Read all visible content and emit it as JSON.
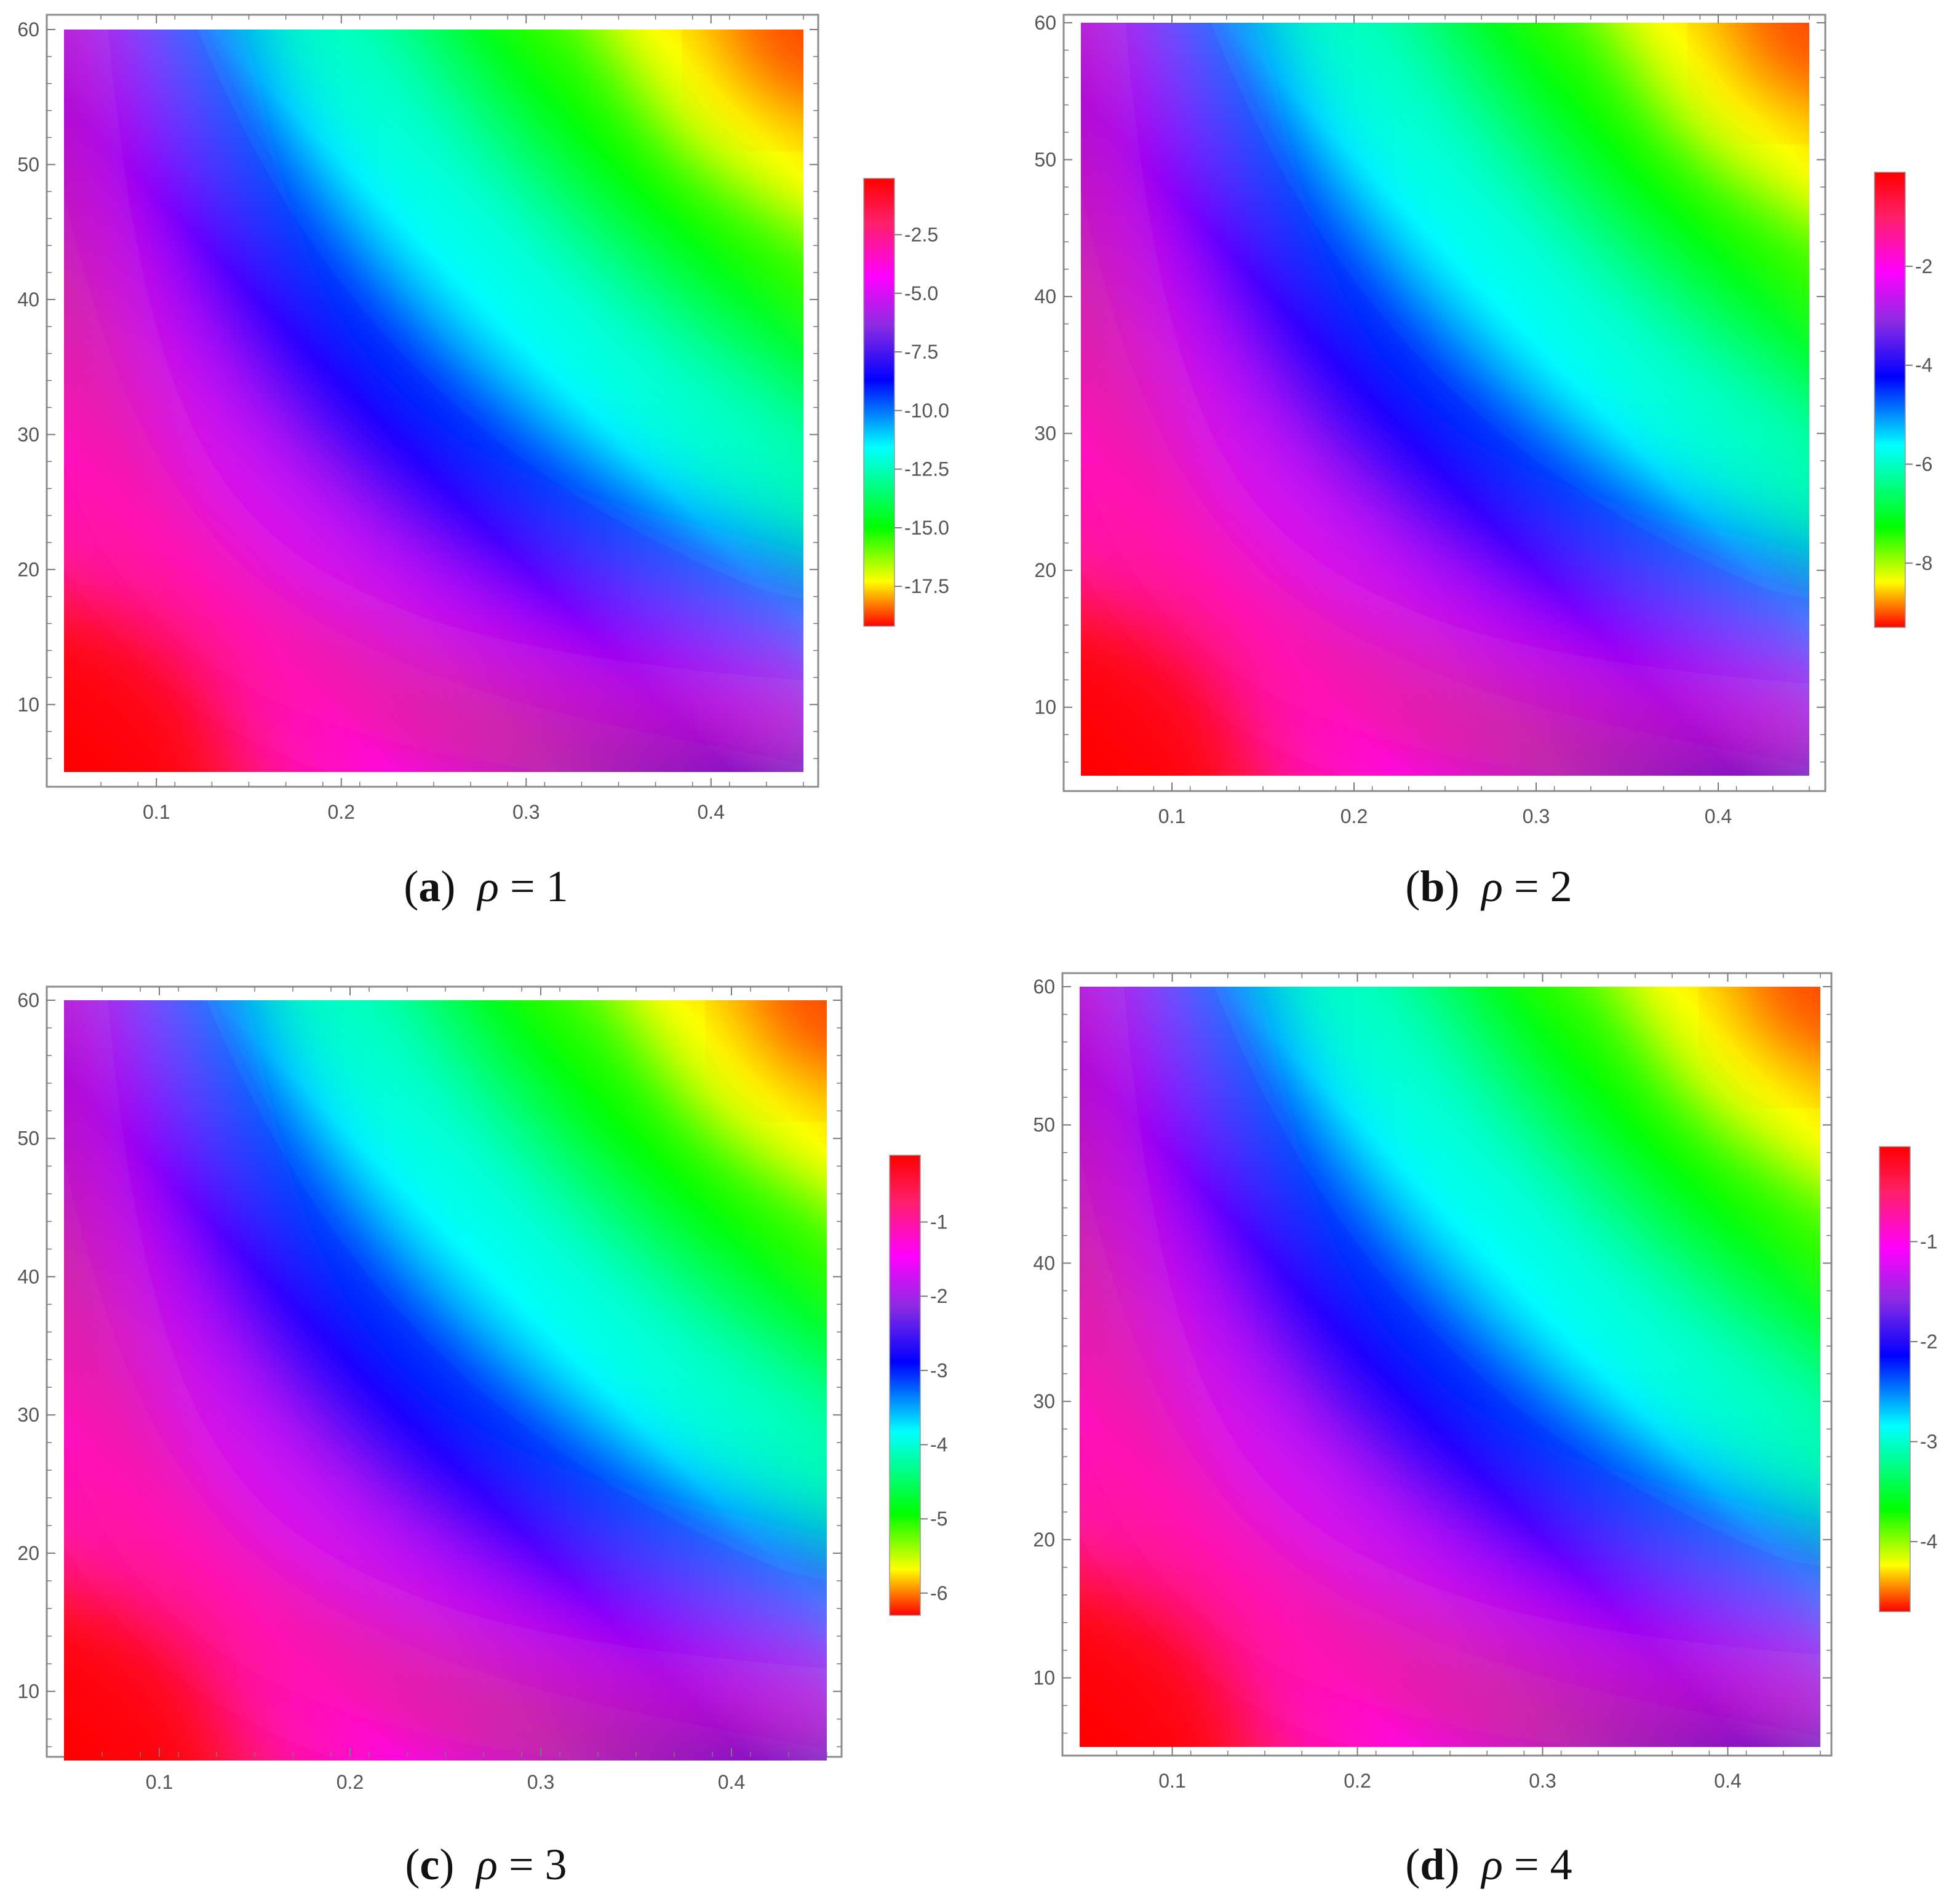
{
  "colors": {
    "frame": "#8c8c8c",
    "ticks": "#7a7a7a",
    "labels": "#555555",
    "scale": [
      "#ff0000",
      "#ff1f6a",
      "#ff00ff",
      "#8a2be2",
      "#0000ff",
      "#00ffff",
      "#00ff00",
      "#ffff00",
      "#ff0000"
    ]
  },
  "chart_data": [
    {
      "type": "heatmap",
      "panel": "a",
      "caption": {
        "letter": "a",
        "symbol": "ρ",
        "relation": "=",
        "value": "1"
      },
      "xlim": [
        0.05,
        0.45
      ],
      "ylim": [
        5,
        60
      ],
      "xticks": [
        "0.1",
        "0.2",
        "0.3",
        "0.4"
      ],
      "yticks": [
        "10",
        "20",
        "30",
        "40",
        "50",
        "60"
      ],
      "zlim": [
        -19.2,
        -0.1
      ],
      "legend_ticks": [
        "-2.5",
        "-5.0",
        "-7.5",
        "-10.0",
        "-12.5",
        "-15.0",
        "-17.5"
      ],
      "legend": "right"
    },
    {
      "type": "heatmap",
      "panel": "b",
      "caption": {
        "letter": "b",
        "symbol": "ρ",
        "relation": "=",
        "value": "2"
      },
      "xlim": [
        0.05,
        0.45
      ],
      "ylim": [
        5,
        60
      ],
      "xticks": [
        "0.1",
        "0.2",
        "0.3",
        "0.4"
      ],
      "yticks": [
        "10",
        "20",
        "30",
        "40",
        "50",
        "60"
      ],
      "zlim": [
        -9.3,
        -0.1
      ],
      "legend_ticks": [
        "-2",
        "-4",
        "-6",
        "-8"
      ],
      "legend": "right"
    },
    {
      "type": "heatmap",
      "panel": "c",
      "caption": {
        "letter": "c",
        "symbol": "ρ",
        "relation": "=",
        "value": "3"
      },
      "xlim": [
        0.05,
        0.45
      ],
      "ylim": [
        5,
        60
      ],
      "xticks": [
        "0.1",
        "0.2",
        "0.3",
        "0.4"
      ],
      "yticks": [
        "10",
        "20",
        "30",
        "40",
        "50",
        "60"
      ],
      "zlim": [
        -6.3,
        -0.1
      ],
      "legend_ticks": [
        "-1",
        "-2",
        "-3",
        "-4",
        "-5",
        "-6"
      ],
      "legend": "right"
    },
    {
      "type": "heatmap",
      "panel": "d",
      "caption": {
        "letter": "d",
        "symbol": "ρ",
        "relation": "=",
        "value": "4"
      },
      "xlim": [
        0.05,
        0.45
      ],
      "ylim": [
        5,
        60
      ],
      "xticks": [
        "0.1",
        "0.2",
        "0.3",
        "0.4"
      ],
      "yticks": [
        "10",
        "20",
        "30",
        "40",
        "50",
        "60"
      ],
      "zlim": [
        -4.7,
        -0.05
      ],
      "legend_ticks": [
        "-1",
        "-2",
        "-3",
        "-4"
      ],
      "legend": "right"
    }
  ]
}
